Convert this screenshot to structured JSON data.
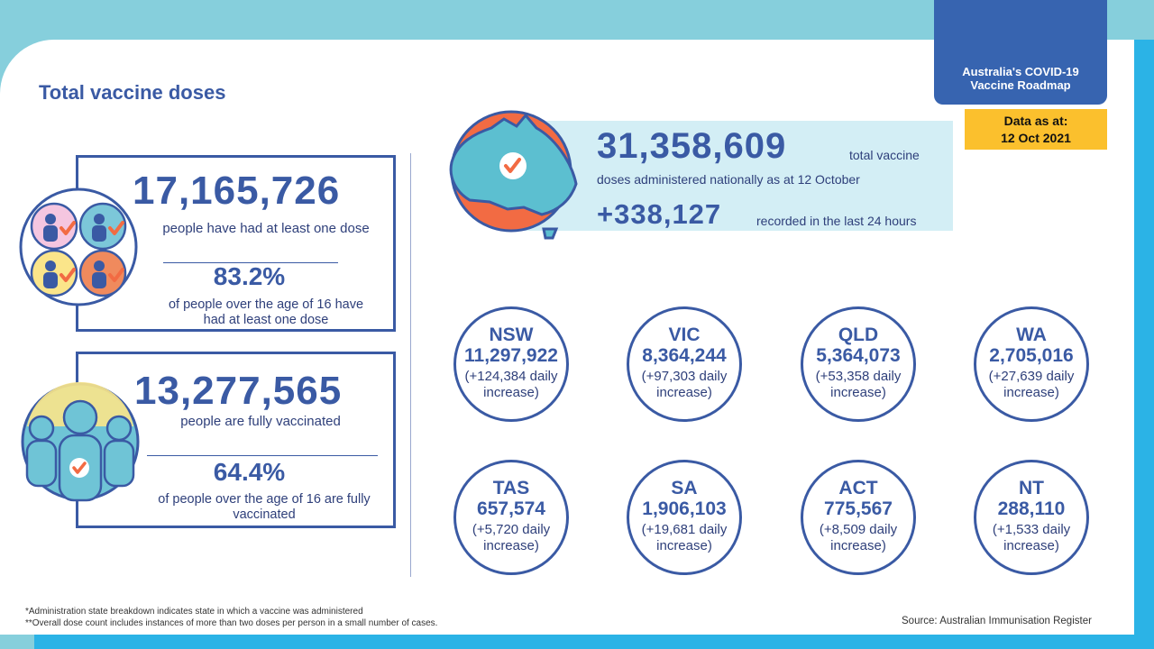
{
  "roadmap": {
    "line1": "Australia's COVID-19",
    "line2": "Vaccine Roadmap"
  },
  "data_as_at": {
    "label": "Data as at:",
    "date": "12 Oct 2021"
  },
  "title": "Total vaccine doses",
  "first_dose": {
    "count": "17,165,726",
    "count_desc": "people have had at least one dose",
    "percent": "83.2%",
    "percent_desc": "of people over the age of 16 have had at least one dose"
  },
  "fully": {
    "count": "13,277,565",
    "count_desc": "people are fully vaccinated",
    "percent": "64.4%",
    "percent_desc": "of people over the age of 16 are fully vaccinated"
  },
  "national": {
    "total": "31,358,609",
    "total_suffix": "total vaccine",
    "total_desc": "doses administered nationally as at 12 October",
    "increase": "+338,127",
    "increase_desc": "recorded in the last 24 hours"
  },
  "states": [
    {
      "name": "NSW",
      "value": "11,297,922",
      "inc1": "(+124,384 daily",
      "inc2": "increase)"
    },
    {
      "name": "VIC",
      "value": "8,364,244",
      "inc1": "(+97,303 daily",
      "inc2": "increase)"
    },
    {
      "name": "QLD",
      "value": "5,364,073",
      "inc1": "(+53,358 daily",
      "inc2": "increase)"
    },
    {
      "name": "WA",
      "value": "2,705,016",
      "inc1": "(+27,639 daily",
      "inc2": "increase)"
    },
    {
      "name": "TAS",
      "value": "657,574",
      "inc1": "(+5,720 daily",
      "inc2": "increase)"
    },
    {
      "name": "SA",
      "value": "1,906,103",
      "inc1": "(+19,681 daily",
      "inc2": "increase)"
    },
    {
      "name": "ACT",
      "value": "775,567",
      "inc1": "(+8,509 daily",
      "inc2": "increase)"
    },
    {
      "name": "NT",
      "value": "288,110",
      "inc1": "(+1,533 daily",
      "inc2": "increase)"
    }
  ],
  "footnotes": {
    "f1": "*Administration state breakdown indicates state in which a vaccine was administered",
    "f2": "**Overall dose count includes instances of more than two doses per person in a small number of cases."
  },
  "source": "Source: Australian Immunisation Register",
  "colors": {
    "navy": "#3a5aa4",
    "orange": "#f26b43",
    "teal": "#5cbfd0",
    "yellow": "#fbc02d",
    "band": "#2bb3e6"
  }
}
